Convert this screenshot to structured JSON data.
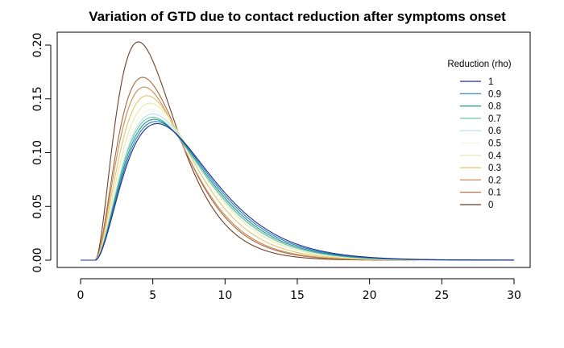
{
  "chart_data": {
    "type": "line",
    "title": "Variation of GTD due to contact reduction after symptoms onset",
    "xlabel": "",
    "ylabel": "",
    "xlim": [
      0,
      30
    ],
    "ylim": [
      0,
      0.2
    ],
    "x_ticks": [
      0,
      5,
      10,
      15,
      20,
      25,
      30
    ],
    "x_tick_labels": [
      "0",
      "5",
      "10",
      "15",
      "20",
      "25",
      "30"
    ],
    "y_ticks": [
      0,
      0.05,
      0.1,
      0.15,
      0.2
    ],
    "y_tick_labels": [
      "0.00",
      "0.05",
      "0.10",
      "0.15",
      "0.20"
    ],
    "grid": false,
    "legend": {
      "title": "Reduction (rho)",
      "position": "top-right"
    },
    "curve_model": {
      "description": "Shifted gamma-like curves; values read off the plot",
      "shift": 1.0,
      "shape": 3
    },
    "series": [
      {
        "name": "1",
        "color": "#1d2f8f",
        "peak_x": 5.3,
        "peak_y": 0.127
      },
      {
        "name": "0.9",
        "color": "#2a78b8",
        "peak_x": 5.2,
        "peak_y": 0.129
      },
      {
        "name": "0.8",
        "color": "#1f9a8a",
        "peak_x": 5.1,
        "peak_y": 0.131
      },
      {
        "name": "0.7",
        "color": "#6fc1ad",
        "peak_x": 5.0,
        "peak_y": 0.133
      },
      {
        "name": "0.6",
        "color": "#b3e0e8",
        "peak_x": 5.0,
        "peak_y": 0.136
      },
      {
        "name": "0.5",
        "color": "#f7f4e0",
        "peak_x": 4.9,
        "peak_y": 0.14
      },
      {
        "name": "0.4",
        "color": "#e8e8a6",
        "peak_x": 4.8,
        "peak_y": 0.146
      },
      {
        "name": "0.3",
        "color": "#e0c56e",
        "peak_x": 4.6,
        "peak_y": 0.153
      },
      {
        "name": "0.2",
        "color": "#c98a55",
        "peak_x": 4.4,
        "peak_y": 0.161
      },
      {
        "name": "0.1",
        "color": "#a8673a",
        "peak_x": 4.3,
        "peak_y": 0.17
      },
      {
        "name": "0",
        "color": "#6e3f26",
        "peak_x": 4.0,
        "peak_y": 0.203
      }
    ]
  }
}
